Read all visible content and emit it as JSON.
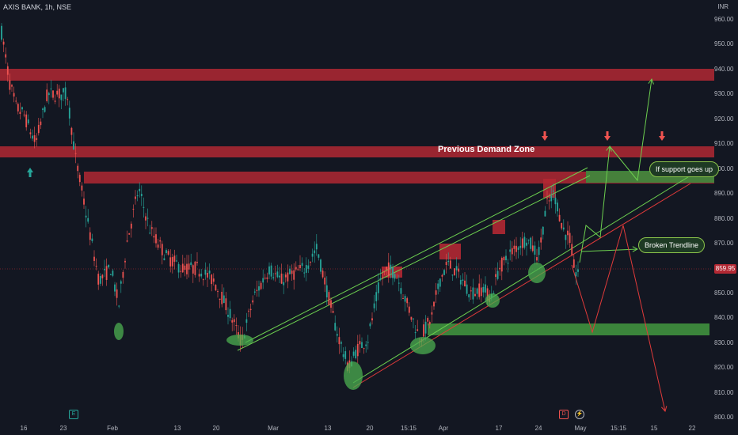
{
  "header": {
    "symbol_line": "AXIS BANK, 1h, NSE",
    "currency": "INR"
  },
  "price_axis": {
    "labels": [
      "960.00",
      "950.00",
      "940.00",
      "930.00",
      "920.00",
      "910.00",
      "900.00",
      "890.00",
      "880.00",
      "870.00",
      "860.00",
      "850.00",
      "840.00",
      "830.00",
      "820.00",
      "810.00",
      "800.00"
    ],
    "current_price": "859.95"
  },
  "time_axis": {
    "labels": [
      "16",
      "23",
      "Feb",
      "13",
      "20",
      "Mar",
      "13",
      "20",
      "15:15",
      "Apr",
      "17",
      "24",
      "May",
      "15:15",
      "15",
      "22"
    ]
  },
  "annotations": {
    "demand_zone": "Previous Demand Zone",
    "support_callout": "If support goes up",
    "trendline_callout": "Broken Trendline"
  },
  "markers": {
    "earnings_icon": "E",
    "dividend_icon": "D",
    "flash_icon": "⚡"
  },
  "colors": {
    "background": "#131722",
    "up_candle": "#26a69a",
    "down_candle": "#ef5350",
    "zone_red": "#b22833",
    "zone_green": "#3d8b3d",
    "channel_green": "#6ccf4f",
    "trend_red": "#e03a3a"
  }
}
